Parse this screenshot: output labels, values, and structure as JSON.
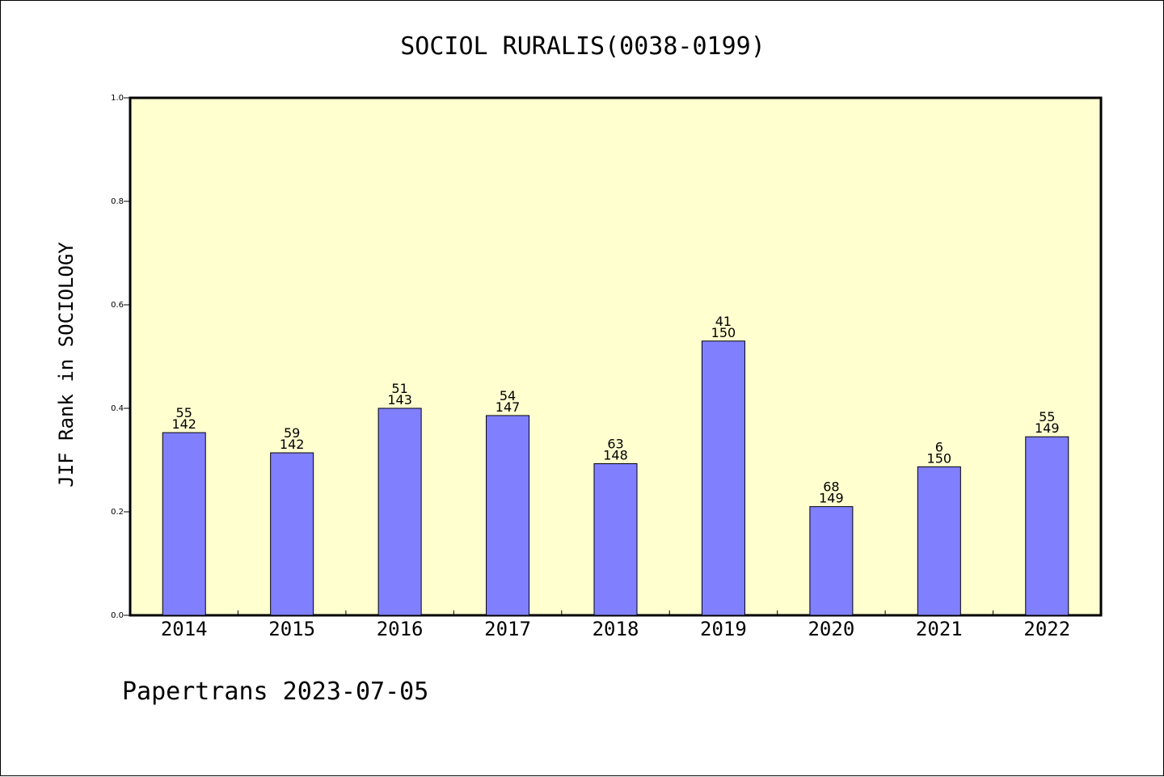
{
  "title": "SOCIOL RURALIS(0038-0199)",
  "footer": "Papertrans 2023-07-05",
  "colors": {
    "plot_background": "#ffffd0",
    "bar_fill": "#8080ff",
    "bar_stroke": "#000000",
    "frame": "#000000"
  },
  "chart_data": {
    "type": "bar",
    "xlabel": "",
    "ylabel": "JIF Rank in SOCIOLOGY",
    "ylim": [
      0,
      1.0
    ],
    "yticks": [
      "0.0",
      "0.2",
      "0.4",
      "0.6",
      "0.8",
      "1.0"
    ],
    "grid": false,
    "categories": [
      "2014",
      "2015",
      "2016",
      "2017",
      "2018",
      "2019",
      "2020",
      "2021",
      "2022"
    ],
    "values": [
      0.353,
      0.314,
      0.4,
      0.386,
      0.293,
      0.53,
      0.21,
      0.287,
      0.345
    ],
    "labels_top": [
      "55",
      "59",
      "51",
      "54",
      "63",
      "41",
      "68",
      "6",
      "55"
    ],
    "labels_bottom": [
      "142",
      "142",
      "143",
      "147",
      "148",
      "150",
      "149",
      "150",
      "149"
    ]
  }
}
